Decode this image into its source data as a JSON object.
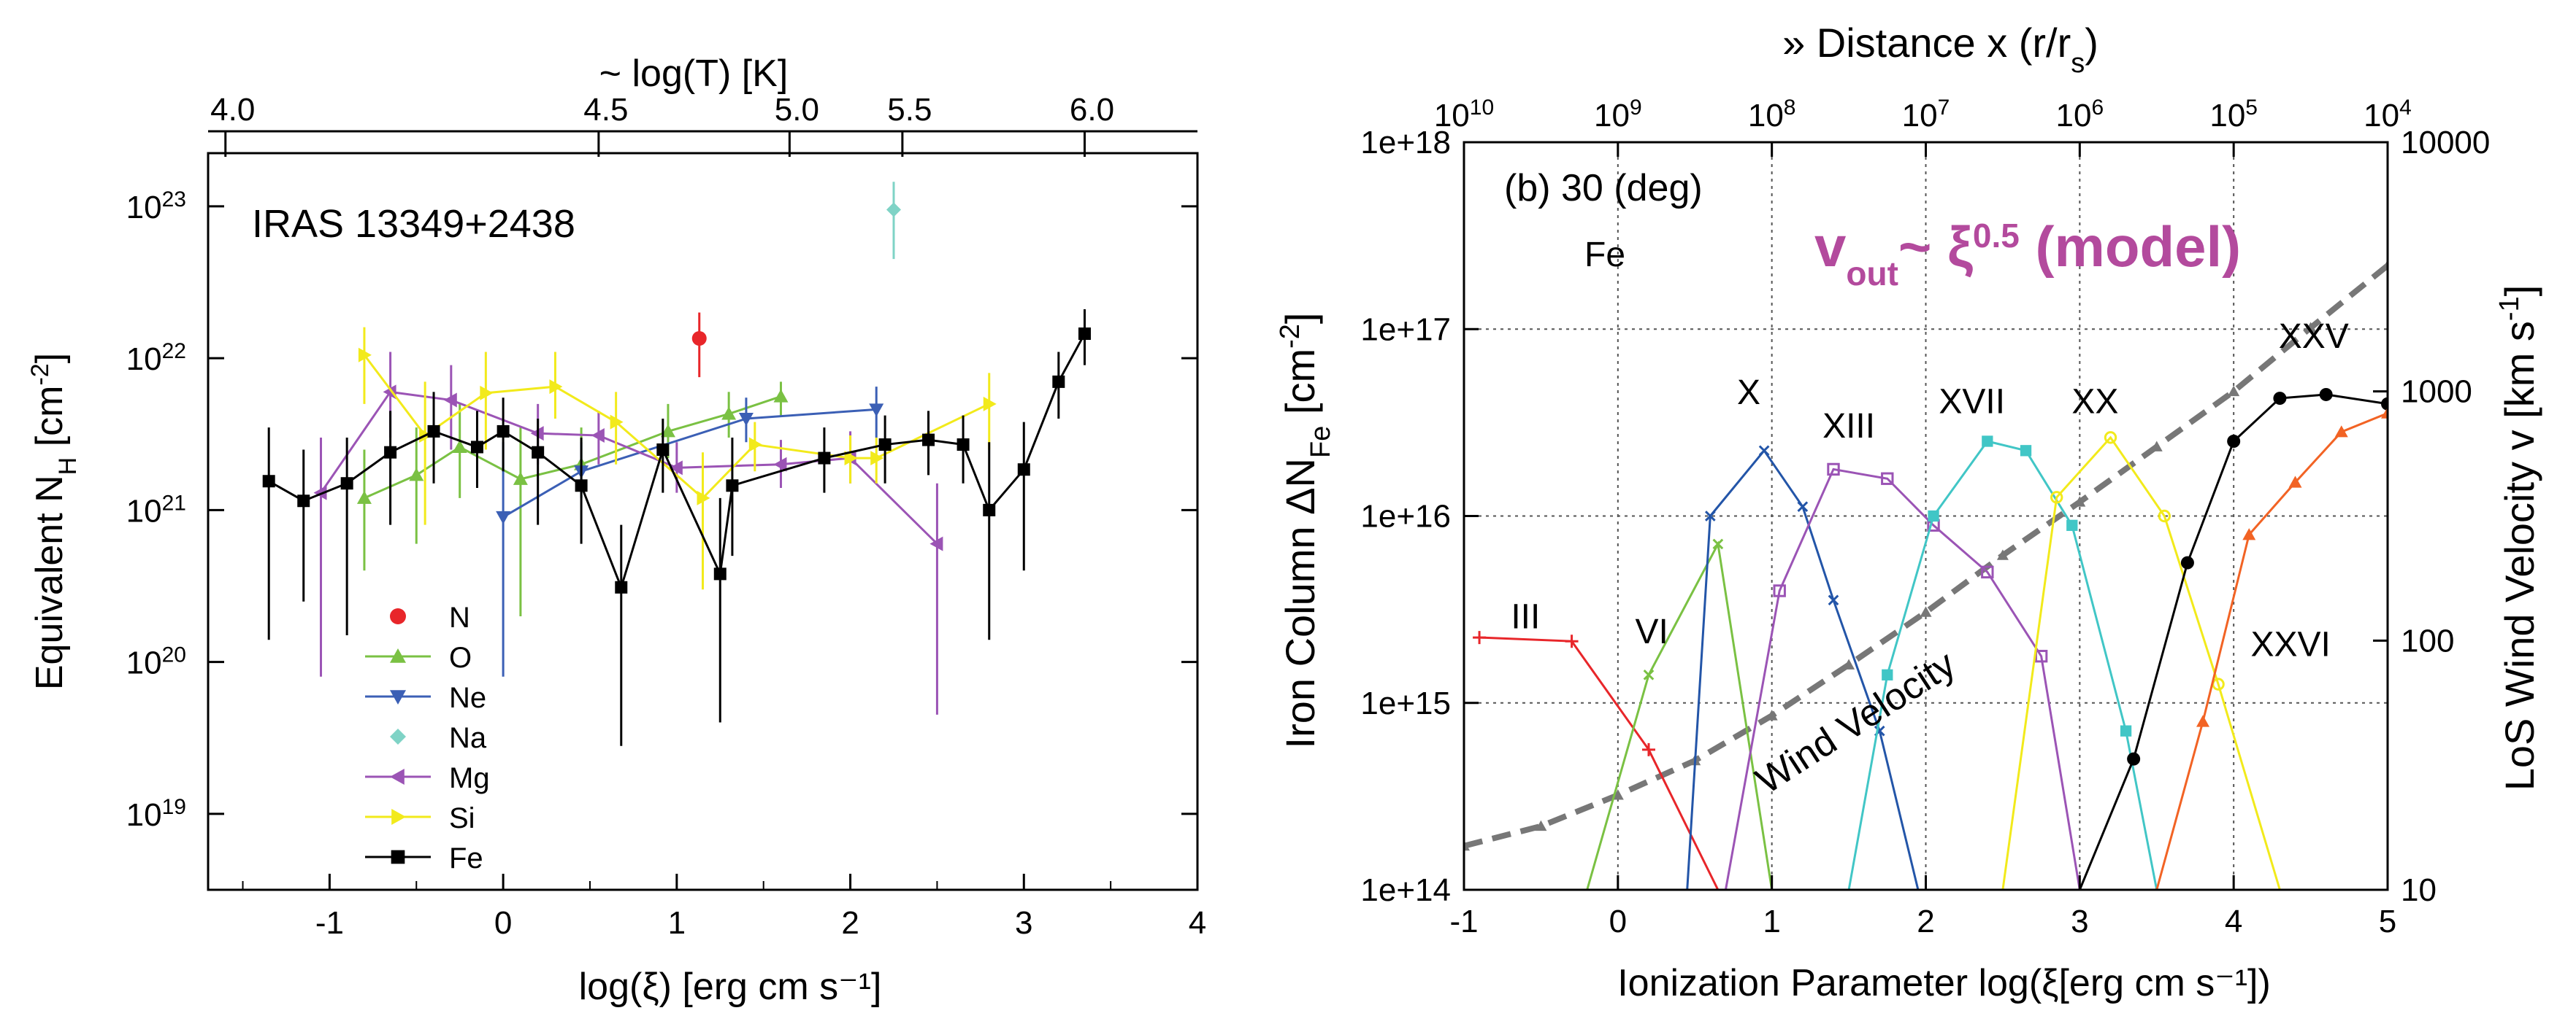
{
  "chart_data": [
    {
      "type": "scatter",
      "panel": "left",
      "annotation": "IRAS 13349+2438",
      "xlabel": "log(ξ) [erg cm s⁻¹]",
      "ylabel_base": "Equivalent  N",
      "ylabel_sub": "H",
      "ylabel_unit": " [cm",
      "ylabel_exp": "-2",
      "ylabel_close": "]",
      "top_axis_title": "~ log(T) [K]",
      "xlim": [
        -1.7,
        4
      ],
      "ylim_log10": [
        18.5,
        23.35
      ],
      "y_scale": "log",
      "xticks": [
        -1,
        0,
        1,
        2,
        3,
        4
      ],
      "xtick_labels": [
        "-1",
        "0",
        "1",
        "2",
        "3",
        "4"
      ],
      "yticks_exp": [
        19,
        20,
        21,
        22,
        23
      ],
      "ytick_base": "10",
      "top_ticks": [
        {
          "label": "4.0",
          "x": -1.6
        },
        {
          "label": "4.5",
          "x": 0.55
        },
        {
          "label": "5.0",
          "x": 1.65
        },
        {
          "label": "5.5",
          "x": 2.3
        },
        {
          "label": "6.0",
          "x": 3.35
        }
      ],
      "legend_position": "lower-left",
      "series": [
        {
          "name": "N",
          "color": "#e8262a",
          "marker": "circle",
          "connect": false,
          "points": [
            {
              "x": 1.13,
              "y": 1.35e+22,
              "lo": 7.5e+21,
              "hi": 2e+22
            }
          ]
        },
        {
          "name": "O",
          "color": "#7ac143",
          "marker": "triangle-up",
          "connect": true,
          "points": [
            {
              "x": -0.8,
              "y": 1.2e+21,
              "lo": 4e+20,
              "hi": 2.5e+21
            },
            {
              "x": -0.5,
              "y": 1.7e+21,
              "lo": 6e+20,
              "hi": 3.5e+21
            },
            {
              "x": -0.25,
              "y": 2.6e+21,
              "lo": 1.2e+21,
              "hi": 5e+21
            },
            {
              "x": 0.1,
              "y": 1.6e+21,
              "lo": 2e+20,
              "hi": 3.5e+21
            },
            {
              "x": 0.45,
              "y": 2e+21,
              "lo": 1.2e+21,
              "hi": 3.5e+21
            },
            {
              "x": 0.95,
              "y": 3.3e+21,
              "lo": 2.2e+21,
              "hi": 5e+21
            },
            {
              "x": 1.3,
              "y": 4.3e+21,
              "lo": 3e+21,
              "hi": 6e+21
            },
            {
              "x": 1.6,
              "y": 5.6e+21,
              "lo": 4.2e+21,
              "hi": 7e+21
            }
          ]
        },
        {
          "name": "Ne",
          "color": "#3b5fb5",
          "marker": "triangle-down",
          "connect": true,
          "points": [
            {
              "x": 0.0,
              "y": 9e+20,
              "lo": 8e+19,
              "hi": 2.8e+21
            },
            {
              "x": 0.45,
              "y": 1.8e+21,
              "lo": 1.2e+21,
              "hi": 2.8e+21
            },
            {
              "x": 1.4,
              "y": 4e+21,
              "lo": 2.8e+21,
              "hi": 5.5e+21
            },
            {
              "x": 2.15,
              "y": 4.6e+21,
              "lo": 3e+21,
              "hi": 6.5e+21
            }
          ]
        },
        {
          "name": "Na",
          "color": "#7fd3c6",
          "marker": "diamond",
          "connect": false,
          "points": [
            {
              "x": 2.25,
              "y": 9.5e+22,
              "lo": 4.5e+22,
              "hi": 1.45e+23
            }
          ]
        },
        {
          "name": "Mg",
          "color": "#9b54b5",
          "marker": "triangle-left",
          "connect": true,
          "points": [
            {
              "x": -1.05,
              "y": 1.3e+21,
              "lo": 8e+19,
              "hi": 3e+21
            },
            {
              "x": -0.65,
              "y": 6e+21,
              "lo": 3e+21,
              "hi": 1.1e+22
            },
            {
              "x": -0.3,
              "y": 5.3e+21,
              "lo": 2.5e+21,
              "hi": 9e+21
            },
            {
              "x": 0.2,
              "y": 3.2e+21,
              "lo": 2e+21,
              "hi": 5e+21
            },
            {
              "x": 0.55,
              "y": 3.1e+21,
              "lo": 2e+21,
              "hi": 4.5e+21
            },
            {
              "x": 1.0,
              "y": 1.9e+21,
              "lo": 1.3e+21,
              "hi": 2.8e+21
            },
            {
              "x": 1.6,
              "y": 2e+21,
              "lo": 1.4e+21,
              "hi": 2.9e+21
            },
            {
              "x": 2.0,
              "y": 2.2e+21,
              "lo": 1.5e+21,
              "hi": 3.3e+21
            },
            {
              "x": 2.5,
              "y": 6e+20,
              "lo": 4.5e+19,
              "hi": 1.5e+21
            }
          ]
        },
        {
          "name": "Si",
          "color": "#f2ea1b",
          "marker": "triangle-right",
          "connect": true,
          "points": [
            {
              "x": -0.8,
              "y": 1.05e+22,
              "lo": 5e+21,
              "hi": 1.6e+22
            },
            {
              "x": -0.45,
              "y": 3.1e+21,
              "lo": 8e+20,
              "hi": 7e+21
            },
            {
              "x": -0.1,
              "y": 5.9e+21,
              "lo": 2.5e+21,
              "hi": 1.1e+22
            },
            {
              "x": 0.3,
              "y": 6.5e+21,
              "lo": 4e+21,
              "hi": 1.1e+22
            },
            {
              "x": 0.65,
              "y": 3.8e+21,
              "lo": 2e+21,
              "hi": 6e+21
            },
            {
              "x": 1.15,
              "y": 1.2e+21,
              "lo": 3e+20,
              "hi": 2.4e+21
            },
            {
              "x": 1.45,
              "y": 2.7e+21,
              "lo": 1.8e+21,
              "hi": 3.8e+21
            },
            {
              "x": 2.0,
              "y": 2.2e+21,
              "lo": 1.5e+21,
              "hi": 3.1e+21
            },
            {
              "x": 2.15,
              "y": 2.2e+21,
              "lo": 1.5e+21,
              "hi": 3e+21
            },
            {
              "x": 2.8,
              "y": 5e+21,
              "lo": 2.5e+21,
              "hi": 8e+21
            }
          ]
        },
        {
          "name": "Fe",
          "color": "#000000",
          "marker": "square",
          "connect": true,
          "points": [
            {
              "x": -1.35,
              "y": 1.55e+21,
              "lo": 1.4e+20,
              "hi": 3.5e+21
            },
            {
              "x": -1.15,
              "y": 1.15e+21,
              "lo": 2.5e+20,
              "hi": 2.5e+21
            },
            {
              "x": -0.9,
              "y": 1.5e+21,
              "lo": 1.5e+20,
              "hi": 3e+21
            },
            {
              "x": -0.65,
              "y": 2.4e+21,
              "lo": 8e+20,
              "hi": 4.5e+21
            },
            {
              "x": -0.4,
              "y": 3.3e+21,
              "lo": 1.5e+21,
              "hi": 6e+21
            },
            {
              "x": -0.15,
              "y": 2.6e+21,
              "lo": 1.4e+21,
              "hi": 4.5e+21
            },
            {
              "x": 0.0,
              "y": 3.3e+21,
              "lo": 1.8e+21,
              "hi": 5.5e+21
            },
            {
              "x": 0.2,
              "y": 2.4e+21,
              "lo": 8e+20,
              "hi": 4e+21
            },
            {
              "x": 0.45,
              "y": 1.45e+21,
              "lo": 6e+20,
              "hi": 3e+21
            },
            {
              "x": 0.68,
              "y": 3.1e+20,
              "lo": 2.8e+19,
              "hi": 8e+20
            },
            {
              "x": 0.92,
              "y": 2.5e+21,
              "lo": 1.3e+21,
              "hi": 4e+21
            },
            {
              "x": 1.25,
              "y": 3.8e+20,
              "lo": 4e+19,
              "hi": 1.2e+21
            },
            {
              "x": 1.32,
              "y": 1.45e+21,
              "lo": 5e+20,
              "hi": 3e+21
            },
            {
              "x": 1.85,
              "y": 2.2e+21,
              "lo": 1.3e+21,
              "hi": 3.5e+21
            },
            {
              "x": 2.2,
              "y": 2.7e+21,
              "lo": 1.5e+21,
              "hi": 4.2e+21
            },
            {
              "x": 2.45,
              "y": 2.9e+21,
              "lo": 1.7e+21,
              "hi": 4.5e+21
            },
            {
              "x": 2.65,
              "y": 2.7e+21,
              "lo": 1.5e+21,
              "hi": 4.2e+21
            },
            {
              "x": 2.8,
              "y": 1e+21,
              "lo": 1.4e+20,
              "hi": 2.8e+21
            },
            {
              "x": 3.0,
              "y": 1.85e+21,
              "lo": 4e+20,
              "hi": 3.8e+21
            },
            {
              "x": 3.2,
              "y": 7e+21,
              "lo": 4e+21,
              "hi": 1.1e+22
            },
            {
              "x": 3.35,
              "y": 1.45e+22,
              "lo": 9e+21,
              "hi": 2.1e+22
            }
          ]
        }
      ]
    },
    {
      "type": "line",
      "panel": "right",
      "title_label": "(b) 30 (deg)",
      "element_label": "Fe",
      "model_label_base": "v",
      "model_label_sub": "out",
      "model_label_mid": "~ ξ",
      "model_label_exp": "0.5",
      "model_label_end": " (model)",
      "xlabel": "Ionization Parameter  log(ξ[erg cm s⁻¹])",
      "ylabel_base": "Iron Column  ΔN",
      "ylabel_sub": "Fe",
      "ylabel_unit": " [cm",
      "ylabel_exp": "-2",
      "ylabel_close": "]",
      "y2label_base": "LoS Wind Velocity  v [km s",
      "y2label_exp": "-1",
      "y2label_close": "]",
      "top_axis_title": "» Distance x (r/r",
      "top_axis_title_sub": "s",
      "top_axis_title_close": ")",
      "xlim": [
        -1,
        5
      ],
      "ylim_log10": [
        14,
        18
      ],
      "y2lim_log10": [
        1,
        4
      ],
      "y_scale": "log",
      "xticks": [
        -1,
        0,
        1,
        2,
        3,
        4,
        5
      ],
      "xtick_labels": [
        "-1",
        "0",
        "1",
        "2",
        "3",
        "4",
        "5"
      ],
      "yticks_exp": [
        14,
        15,
        16,
        17,
        18
      ],
      "ytick_labels": [
        "1e+14",
        "1e+15",
        "1e+16",
        "1e+17",
        "1e+18"
      ],
      "y2ticks": [
        10,
        100,
        1000,
        10000
      ],
      "y2tick_labels": [
        "10",
        "100",
        "1000",
        "10000"
      ],
      "top_tick_base": "10",
      "top_tick_exps": [
        "10",
        "9",
        "8",
        "7",
        "6",
        "5",
        "4"
      ],
      "grid": true,
      "curve_label": "Wind Velocity",
      "wind_velocity": {
        "color": "#777777",
        "x": [
          -1,
          -0.5,
          0,
          0.5,
          1,
          1.5,
          2,
          2.5,
          3,
          3.5,
          4,
          4.5,
          5
        ],
        "v": [
          15,
          18,
          24,
          33,
          50,
          80,
          130,
          220,
          360,
          600,
          1000,
          1800,
          3200
        ]
      },
      "series": [
        {
          "name": "III",
          "color": "#e8262a",
          "marker": "plus",
          "x": [
            -0.9,
            -0.3,
            0.2,
            0.65
          ],
          "logy": [
            15.35,
            15.33,
            14.75,
            14.0
          ]
        },
        {
          "name": "VI",
          "color": "#7ac143",
          "marker": "x",
          "x": [
            -0.2,
            0.2,
            0.65,
            1.0
          ],
          "logy": [
            14.0,
            15.15,
            15.85,
            14.0
          ]
        },
        {
          "name": "X",
          "color": "#2355a8",
          "marker": "x",
          "x": [
            0.45,
            0.6,
            0.95,
            1.2,
            1.4,
            1.7,
            1.95
          ],
          "logy": [
            14.0,
            16.0,
            16.35,
            16.05,
            15.55,
            14.85,
            14.0
          ]
        },
        {
          "name": "XIII",
          "color": "#9b54b5",
          "marker": "open-square",
          "x": [
            0.7,
            1.05,
            1.4,
            1.75,
            2.05,
            2.4,
            2.75,
            3.0
          ],
          "logy": [
            14.0,
            15.6,
            16.25,
            16.2,
            15.95,
            15.7,
            15.25,
            14.0
          ]
        },
        {
          "name": "XVII",
          "color": "#41c6c6",
          "marker": "filled-square",
          "x": [
            1.5,
            1.75,
            2.05,
            2.4,
            2.65,
            2.95,
            3.3,
            3.5
          ],
          "logy": [
            14.0,
            15.15,
            16.0,
            16.4,
            16.35,
            15.95,
            14.85,
            14.0
          ]
        },
        {
          "name": "XX",
          "color": "#f2ea1b",
          "marker": "open-circle",
          "x": [
            2.5,
            2.85,
            3.2,
            3.55,
            3.9,
            4.3
          ],
          "logy": [
            14.0,
            16.1,
            16.42,
            16.0,
            15.1,
            14.0
          ]
        },
        {
          "name": "XXV",
          "color": "#000000",
          "marker": "filled-circle",
          "x": [
            3.0,
            3.35,
            3.7,
            4.0,
            4.3,
            4.6,
            5.0
          ],
          "logy": [
            14.0,
            14.7,
            15.75,
            16.4,
            16.63,
            16.65,
            16.6
          ]
        },
        {
          "name": "XXVI",
          "color": "#f26324",
          "marker": "triangle",
          "x": [
            3.5,
            3.8,
            4.1,
            4.4,
            4.7,
            5.0
          ],
          "logy": [
            14.0,
            14.9,
            15.9,
            16.18,
            16.45,
            16.55
          ]
        }
      ],
      "ion_labels": [
        {
          "text": "III",
          "x": -0.6,
          "logy": 15.4
        },
        {
          "text": "VI",
          "x": 0.22,
          "logy": 15.32
        },
        {
          "text": "X",
          "x": 0.85,
          "logy": 16.6
        },
        {
          "text": "XIII",
          "x": 1.5,
          "logy": 16.42
        },
        {
          "text": "XVII",
          "x": 2.3,
          "logy": 16.55
        },
        {
          "text": "XX",
          "x": 3.1,
          "logy": 16.55
        },
        {
          "text": "XXV",
          "x": 4.52,
          "logy": 16.9
        },
        {
          "text": "XXVI",
          "x": 4.37,
          "logy": 15.25
        }
      ]
    }
  ]
}
